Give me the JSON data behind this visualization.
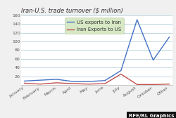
{
  "title": "Iran-U.S. trade turnover ($ million)",
  "month_labels": [
    "January",
    "February",
    "March",
    "April",
    "May",
    "June",
    "July",
    "August",
    "October",
    "Other"
  ],
  "us_exports": [
    9,
    11,
    13,
    8,
    8,
    10,
    33,
    150,
    57,
    110
  ],
  "iran_exports": [
    4,
    2,
    5,
    3,
    2,
    3,
    25,
    1,
    1,
    2
  ],
  "ylim": [
    0,
    160
  ],
  "yticks": [
    20,
    40,
    60,
    80,
    100,
    120,
    140,
    160
  ],
  "us_color": "#4472c4",
  "iran_color": "#c0504d",
  "legend_bg": "#d6e8c4",
  "legend_edge": "#b8ccaa",
  "legend_label_us": "US exports to Iran",
  "legend_label_iran": "Iran Exports to US",
  "bg_color": "#f0f0f0",
  "plot_bg": "#ffffff",
  "grid_color": "#a8c8d8",
  "source_text": "RFE/RL Graphics",
  "title_fontsize": 6,
  "axis_fontsize": 4.5,
  "legend_fontsize": 5.0,
  "tick_label_color": "#555555"
}
